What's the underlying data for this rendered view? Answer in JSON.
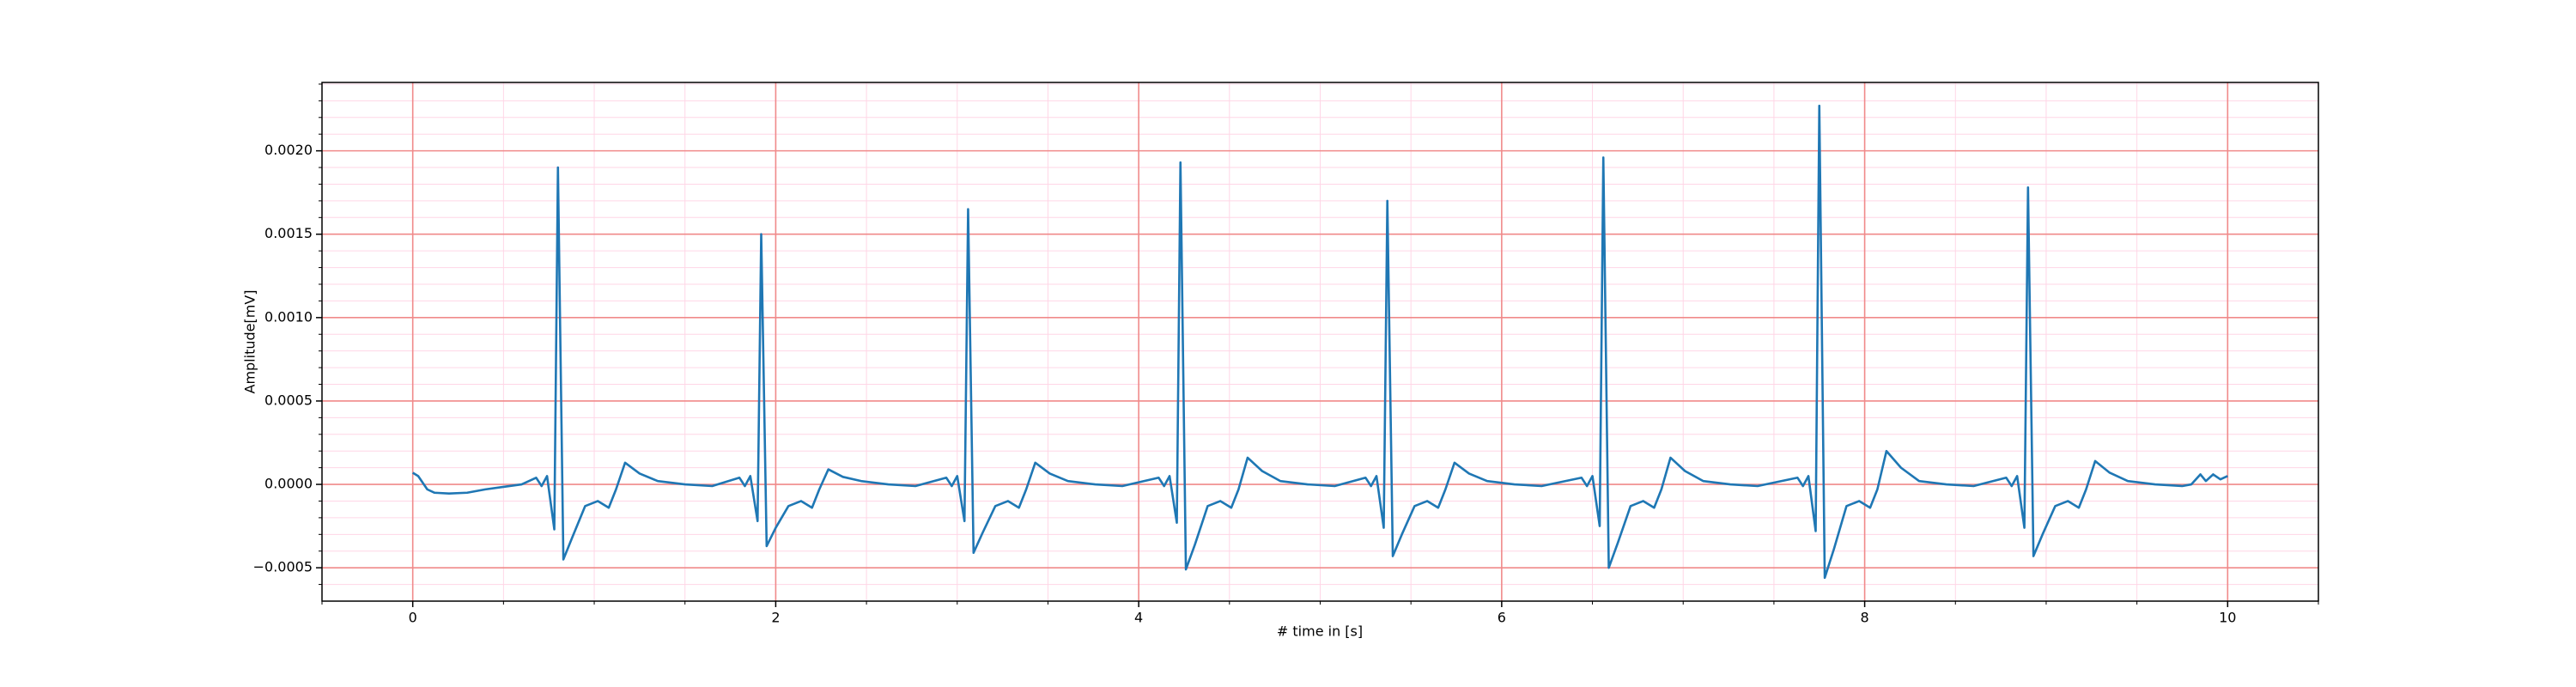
{
  "chart_data": {
    "type": "line",
    "xlabel": "# time in [s]",
    "ylabel": "Amplitude[mV]",
    "color": "#1f77b4",
    "grid": true,
    "grid_color": "#f08a8a",
    "minor_grid_color": "#ffd6e6",
    "xlim": [
      -0.5,
      10.5
    ],
    "ylim": [
      -0.0007,
      0.00241
    ],
    "xticks": [
      0,
      2,
      4,
      6,
      8,
      10
    ],
    "yticks": [
      {
        "value": -0.0005,
        "label": "−0.0005"
      },
      {
        "value": 0,
        "label": "0.0000"
      },
      {
        "value": 0.0005,
        "label": "0.0005"
      },
      {
        "value": 0.001,
        "label": "0.0010"
      },
      {
        "value": 0.0015,
        "label": "0.0015"
      },
      {
        "value": 0.002,
        "label": "0.0020"
      }
    ],
    "xminorticks": [
      -0.5,
      0.5,
      1,
      1.5,
      2.5,
      3,
      3.5,
      4.5,
      5,
      5.5,
      6.5,
      7,
      7.5,
      8.5,
      9,
      9.5,
      10.5
    ],
    "yminorticks": [
      -0.0006,
      -0.0004,
      -0.0003,
      -0.0002,
      -0.0001,
      0.0001,
      0.0002,
      0.0003,
      0.0004,
      0.0006,
      0.0007,
      0.0008,
      0.0009,
      0.0011,
      0.0012,
      0.0013,
      0.0014,
      0.0016,
      0.0017,
      0.0018,
      0.0019,
      0.0021,
      0.0022,
      0.0023,
      0.0024
    ],
    "x": [
      0,
      0.03,
      0.08,
      0.12,
      0.2,
      0.3,
      0.4,
      0.5,
      0.6,
      0.68,
      0.71,
      0.74,
      0.78,
      0.8,
      0.83,
      0.88,
      0.95,
      1.02,
      1.08,
      1.12,
      1.17,
      1.25,
      1.35,
      1.5,
      1.65,
      1.8,
      1.83,
      1.86,
      1.9,
      1.92,
      1.95,
      2.0,
      2.07,
      2.14,
      2.2,
      2.24,
      2.29,
      2.37,
      2.47,
      2.62,
      2.77,
      2.94,
      2.97,
      3.0,
      3.04,
      3.06,
      3.09,
      3.14,
      3.21,
      3.28,
      3.34,
      3.38,
      3.43,
      3.51,
      3.61,
      3.76,
      3.91,
      4.11,
      4.14,
      4.17,
      4.21,
      4.23,
      4.26,
      4.31,
      4.38,
      4.45,
      4.51,
      4.55,
      4.6,
      4.68,
      4.78,
      4.93,
      5.08,
      5.25,
      5.28,
      5.31,
      5.35,
      5.37,
      5.4,
      5.45,
      5.52,
      5.59,
      5.65,
      5.69,
      5.74,
      5.82,
      5.92,
      6.07,
      6.22,
      6.44,
      6.47,
      6.5,
      6.54,
      6.56,
      6.59,
      6.64,
      6.71,
      6.78,
      6.84,
      6.88,
      6.93,
      7.01,
      7.11,
      7.26,
      7.41,
      7.63,
      7.66,
      7.69,
      7.73,
      7.75,
      7.78,
      7.83,
      7.9,
      7.97,
      8.03,
      8.07,
      8.12,
      8.2,
      8.3,
      8.45,
      8.6,
      8.78,
      8.81,
      8.84,
      8.88,
      8.9,
      8.93,
      8.98,
      9.05,
      9.12,
      9.18,
      9.22,
      9.27,
      9.35,
      9.45,
      9.6,
      9.75,
      9.8,
      9.85,
      9.88,
      9.92,
      9.96,
      10.0
    ],
    "values": [
      7e-05,
      5e-05,
      -3e-05,
      -5e-05,
      -5.5e-05,
      -5e-05,
      -3e-05,
      -1.5e-05,
      0,
      4e-05,
      -1e-05,
      5e-05,
      -0.00027,
      0.0019,
      -0.00045,
      -0.000315,
      -0.00013,
      -0.0001,
      -0.00014,
      -3e-05,
      0.00013,
      6.5e-05,
      2e-05,
      0,
      -1e-05,
      4e-05,
      -1e-05,
      5e-05,
      -0.00022,
      0.0015,
      -0.00037,
      -0.00026,
      -0.00013,
      -0.0001,
      -0.00014,
      -3e-05,
      9e-05,
      4.5e-05,
      2e-05,
      0,
      -1e-05,
      4e-05,
      -1e-05,
      5e-05,
      -0.00022,
      0.00165,
      -0.00041,
      -0.00029,
      -0.00013,
      -0.0001,
      -0.00014,
      -3e-05,
      0.00013,
      6.5e-05,
      2e-05,
      0,
      -1e-05,
      4e-05,
      -1e-05,
      5e-05,
      -0.00023,
      0.00193,
      -0.00051,
      -0.00036,
      -0.00013,
      -0.0001,
      -0.00014,
      -3e-05,
      0.00016,
      8e-05,
      2e-05,
      0,
      -1e-05,
      4e-05,
      -1e-05,
      5e-05,
      -0.00026,
      0.0017,
      -0.00043,
      -0.0003,
      -0.00013,
      -0.0001,
      -0.00014,
      -3e-05,
      0.00013,
      6.5e-05,
      2e-05,
      0,
      -1e-05,
      4e-05,
      -1e-05,
      5e-05,
      -0.00025,
      0.00196,
      -0.0005,
      -0.00035,
      -0.00013,
      -0.0001,
      -0.00014,
      -3e-05,
      0.00016,
      8e-05,
      2e-05,
      0,
      -1e-05,
      4e-05,
      -1e-05,
      5e-05,
      -0.00028,
      0.00227,
      -0.00056,
      -0.00039,
      -0.00013,
      -0.0001,
      -0.00014,
      -3e-05,
      0.0002,
      0.0001,
      2e-05,
      0,
      -1e-05,
      4e-05,
      -1e-05,
      5e-05,
      -0.00026,
      0.00178,
      -0.00043,
      -0.0003,
      -0.00013,
      -0.0001,
      -0.00014,
      -3e-05,
      0.00014,
      7e-05,
      2e-05,
      0,
      -1e-05,
      0,
      6e-05,
      2e-05,
      6e-05,
      3e-05,
      5e-05
    ]
  }
}
